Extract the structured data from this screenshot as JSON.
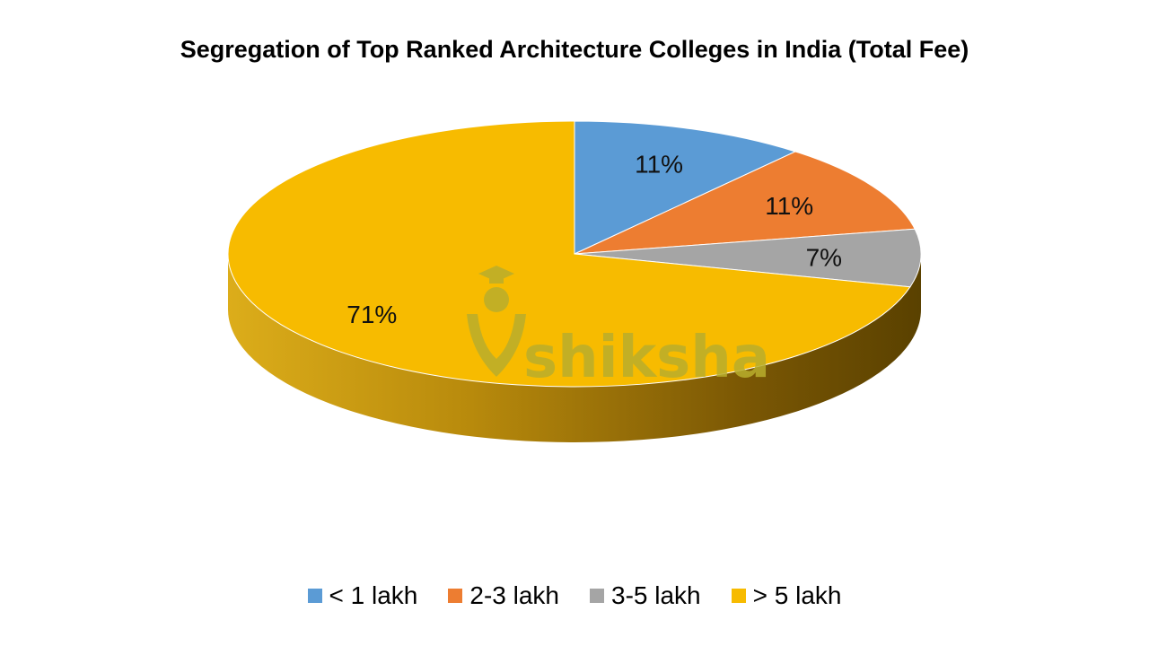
{
  "chart_data": {
    "type": "pie",
    "title": "Segregation of Top Ranked Architecture Colleges in India (Total Fee)",
    "categories": [
      "< 1 lakh",
      "2-3 lakh",
      "3-5 lakh",
      "> 5 lakh"
    ],
    "values": [
      11,
      11,
      7,
      71
    ],
    "data_labels": [
      "11%",
      "11%",
      "7%",
      "71%"
    ],
    "colors": [
      "#5b9bd5",
      "#ed7d31",
      "#a5a5a5",
      "#f7bb00"
    ],
    "legend_position": "bottom",
    "style": "3d"
  },
  "watermark": {
    "text": "shiksha",
    "icon": "graduation-cap-icon",
    "color": "#b9ae2c"
  }
}
